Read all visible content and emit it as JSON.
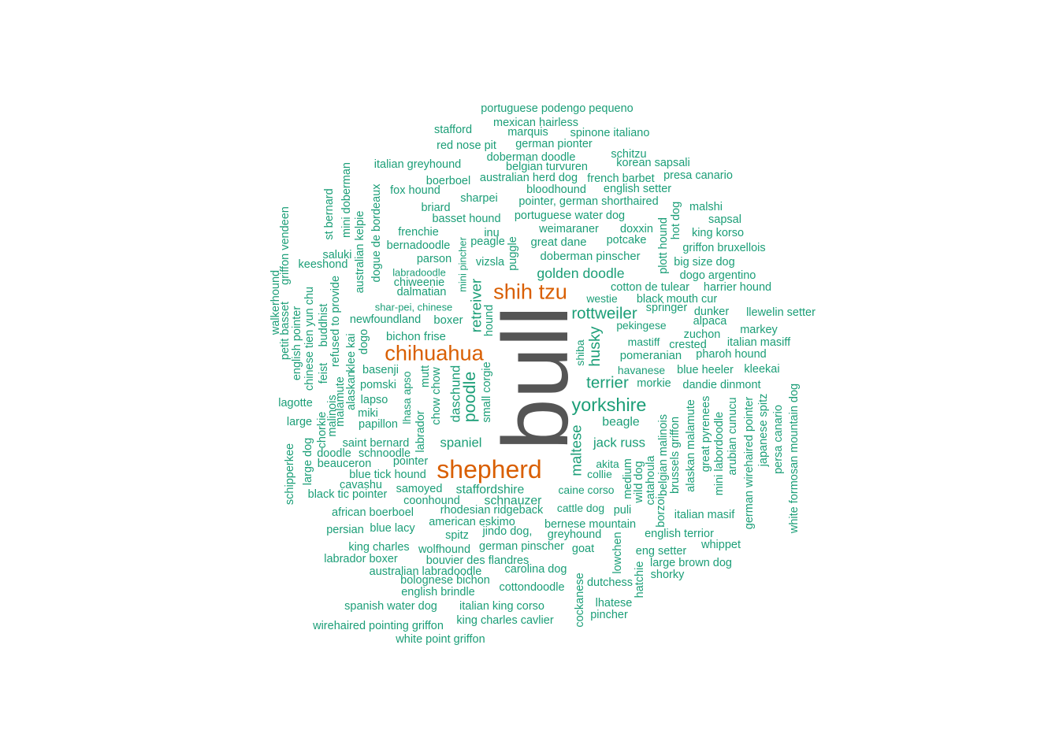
{
  "chart_data": {
    "type": "wordcloud",
    "title": "",
    "colors": {
      "large": "#555555",
      "medium": "#d95f02",
      "small": "#1b9e77"
    },
    "words": [
      {
        "text": "bull",
        "weight": 100
      },
      {
        "text": "shepherd",
        "weight": 40
      },
      {
        "text": "chihuahua",
        "weight": 34
      },
      {
        "text": "shih tzu",
        "weight": 34
      },
      {
        "text": "yorkshire",
        "weight": 24
      },
      {
        "text": "poodle",
        "weight": 22
      },
      {
        "text": "rottweiler",
        "weight": 21
      },
      {
        "text": "terrier",
        "weight": 21
      },
      {
        "text": "husky",
        "weight": 20
      },
      {
        "text": "maltese",
        "weight": 19
      },
      {
        "text": "retreiver",
        "weight": 19
      },
      {
        "text": "golden doodle",
        "weight": 18
      },
      {
        "text": "spaniel",
        "weight": 17
      },
      {
        "text": "jack russ",
        "weight": 17
      },
      {
        "text": "daschund",
        "weight": 17
      },
      {
        "text": "beagle",
        "weight": 16
      },
      {
        "text": "staffordshire",
        "weight": 16
      },
      {
        "text": "schnauzer",
        "weight": 16
      },
      {
        "text": "doberman pinscher",
        "weight": 15
      },
      {
        "text": "chow chow",
        "weight": 15
      },
      {
        "text": "pomeranian",
        "weight": 15
      },
      {
        "text": "bichon frise",
        "weight": 15
      },
      {
        "text": "boxer",
        "weight": 15
      },
      {
        "text": "great dane",
        "weight": 15
      },
      {
        "text": "havanese",
        "weight": 14
      },
      {
        "text": "mastiff",
        "weight": 14
      },
      {
        "text": "shiba",
        "weight": 14
      },
      {
        "text": "caine corso",
        "weight": 14
      },
      {
        "text": "pekingese",
        "weight": 14
      },
      {
        "text": "cattle dog",
        "weight": 14
      },
      {
        "text": "westie",
        "weight": 14
      },
      {
        "text": "lhasa apso",
        "weight": 14
      },
      {
        "text": "akita",
        "weight": 14
      },
      {
        "text": "collie",
        "weight": 14
      },
      {
        "text": "mini pincher",
        "weight": 13
      },
      {
        "text": "labradoodle",
        "weight": 13
      },
      {
        "text": "shar-pei, chinese",
        "weight": 13
      },
      {
        "text": "portuguese podengo pequeno",
        "weight": 12
      },
      {
        "text": "mexican hairless",
        "weight": 12
      },
      {
        "text": "stafford",
        "weight": 12
      },
      {
        "text": "marquis",
        "weight": 12
      },
      {
        "text": "spinone italiano",
        "weight": 12
      },
      {
        "text": "red nose pit",
        "weight": 12
      },
      {
        "text": "german pionter",
        "weight": 12
      },
      {
        "text": "schitzu",
        "weight": 12
      },
      {
        "text": "doberman doodle",
        "weight": 12
      },
      {
        "text": "korean sapsali",
        "weight": 12
      },
      {
        "text": "italian greyhound",
        "weight": 12
      },
      {
        "text": "belgian turvuren",
        "weight": 12
      },
      {
        "text": "presa canario",
        "weight": 12
      },
      {
        "text": "boerboel",
        "weight": 12
      },
      {
        "text": "australian herd dog",
        "weight": 12
      },
      {
        "text": "french barbet",
        "weight": 12
      },
      {
        "text": "fox hound",
        "weight": 12
      },
      {
        "text": "bloodhound",
        "weight": 12
      },
      {
        "text": "english setter",
        "weight": 12
      },
      {
        "text": "sharpei",
        "weight": 12
      },
      {
        "text": "pointer, german shorthaired",
        "weight": 12
      },
      {
        "text": "briard",
        "weight": 12
      },
      {
        "text": "malshi",
        "weight": 12
      },
      {
        "text": "basset hound",
        "weight": 12
      },
      {
        "text": "portuguese water dog",
        "weight": 12
      },
      {
        "text": "sapsal",
        "weight": 12
      },
      {
        "text": "weimaraner",
        "weight": 12
      },
      {
        "text": "doxxin",
        "weight": 12
      },
      {
        "text": "frenchie",
        "weight": 12
      },
      {
        "text": "inu",
        "weight": 12
      },
      {
        "text": "king korso",
        "weight": 12
      },
      {
        "text": "bernadoodle",
        "weight": 12
      },
      {
        "text": "peagle",
        "weight": 12
      },
      {
        "text": "potcake",
        "weight": 12
      },
      {
        "text": "griffon bruxellois",
        "weight": 12
      },
      {
        "text": "parson",
        "weight": 12
      },
      {
        "text": "vizsla",
        "weight": 12
      },
      {
        "text": "big size dog",
        "weight": 12
      },
      {
        "text": "keeshond",
        "weight": 12
      },
      {
        "text": "saluki",
        "weight": 12
      },
      {
        "text": "dogo argentino",
        "weight": 12
      },
      {
        "text": "chiweenie",
        "weight": 12
      },
      {
        "text": "cotton de tulear",
        "weight": 12
      },
      {
        "text": "harrier hound",
        "weight": 12
      },
      {
        "text": "dalmatian",
        "weight": 12
      },
      {
        "text": "black mouth cur",
        "weight": 12
      },
      {
        "text": "springer",
        "weight": 12
      },
      {
        "text": "dunker",
        "weight": 12
      },
      {
        "text": "llewelin setter",
        "weight": 12
      },
      {
        "text": "newfoundland",
        "weight": 12
      },
      {
        "text": "alpaca",
        "weight": 12
      },
      {
        "text": "markey",
        "weight": 12
      },
      {
        "text": "zuchon",
        "weight": 12
      },
      {
        "text": "crested",
        "weight": 12
      },
      {
        "text": "italian masiff",
        "weight": 12
      },
      {
        "text": "pharoh hound",
        "weight": 12
      },
      {
        "text": "basenji",
        "weight": 12
      },
      {
        "text": "blue heeler",
        "weight": 12
      },
      {
        "text": "kleekai",
        "weight": 12
      },
      {
        "text": "pomski",
        "weight": 12
      },
      {
        "text": "morkie",
        "weight": 12
      },
      {
        "text": "dandie dinmont",
        "weight": 12
      },
      {
        "text": "lagotte",
        "weight": 12
      },
      {
        "text": "lapso",
        "weight": 12
      },
      {
        "text": "miki",
        "weight": 12
      },
      {
        "text": "large",
        "weight": 12
      },
      {
        "text": "papillon",
        "weight": 12
      },
      {
        "text": "saint bernard",
        "weight": 12
      },
      {
        "text": "doodle",
        "weight": 12
      },
      {
        "text": "schnoodle",
        "weight": 12
      },
      {
        "text": "beauceron",
        "weight": 12
      },
      {
        "text": "pointer",
        "weight": 12
      },
      {
        "text": "blue tick hound",
        "weight": 12
      },
      {
        "text": "cavashu",
        "weight": 12
      },
      {
        "text": "samoyed",
        "weight": 12
      },
      {
        "text": "black tic pointer",
        "weight": 12
      },
      {
        "text": "coonhound",
        "weight": 12
      },
      {
        "text": "african boerboel",
        "weight": 12
      },
      {
        "text": "rhodesian ridgeback",
        "weight": 12
      },
      {
        "text": "puli",
        "weight": 12
      },
      {
        "text": "italian masif",
        "weight": 12
      },
      {
        "text": "american eskimo",
        "weight": 12
      },
      {
        "text": "bernese mountain",
        "weight": 12
      },
      {
        "text": "persian",
        "weight": 12
      },
      {
        "text": "blue lacy",
        "weight": 12
      },
      {
        "text": "jindo dog,",
        "weight": 12
      },
      {
        "text": "spitz",
        "weight": 12
      },
      {
        "text": "greyhound",
        "weight": 12
      },
      {
        "text": "english terrior",
        "weight": 12
      },
      {
        "text": "king charles",
        "weight": 12
      },
      {
        "text": "german pinscher",
        "weight": 12
      },
      {
        "text": "wolfhound",
        "weight": 12
      },
      {
        "text": "goat",
        "weight": 12
      },
      {
        "text": "whippet",
        "weight": 12
      },
      {
        "text": "eng setter",
        "weight": 12
      },
      {
        "text": "labrador boxer",
        "weight": 12
      },
      {
        "text": "bouvier des flandres",
        "weight": 12
      },
      {
        "text": "large brown dog",
        "weight": 12
      },
      {
        "text": "australian labradoodle",
        "weight": 12
      },
      {
        "text": "carolina dog",
        "weight": 12
      },
      {
        "text": "shorky",
        "weight": 12
      },
      {
        "text": "bolognese bichon",
        "weight": 12
      },
      {
        "text": "dutchess",
        "weight": 12
      },
      {
        "text": "cottondoodle",
        "weight": 12
      },
      {
        "text": "english brindle",
        "weight": 12
      },
      {
        "text": "lhatese",
        "weight": 12
      },
      {
        "text": "spanish water dog",
        "weight": 12
      },
      {
        "text": "italian king corso",
        "weight": 12
      },
      {
        "text": "pincher",
        "weight": 12
      },
      {
        "text": "king charles cavlier",
        "weight": 12
      },
      {
        "text": "wirehaired pointing griffon",
        "weight": 12
      },
      {
        "text": "white point griffon",
        "weight": 12
      },
      {
        "text": "st bernard",
        "weight": 12
      },
      {
        "text": "mini doberman",
        "weight": 12
      },
      {
        "text": "griffon vendeen",
        "weight": 12
      },
      {
        "text": "australian kelpie",
        "weight": 12
      },
      {
        "text": "dogue de bordeaux",
        "weight": 12
      },
      {
        "text": "walkerhound",
        "weight": 12
      },
      {
        "text": "petit basset",
        "weight": 12
      },
      {
        "text": "english pointer",
        "weight": 12
      },
      {
        "text": "chinese tien yun chu",
        "weight": 12
      },
      {
        "text": "buddhist",
        "weight": 12
      },
      {
        "text": "refused to provide",
        "weight": 12
      },
      {
        "text": "feist",
        "weight": 12
      },
      {
        "text": "klee kai",
        "weight": 12
      },
      {
        "text": "dogo",
        "weight": 12
      },
      {
        "text": "alaskan",
        "weight": 12
      },
      {
        "text": "malamute",
        "weight": 12
      },
      {
        "text": "malinois",
        "weight": 12
      },
      {
        "text": "chorkie",
        "weight": 12
      },
      {
        "text": "large dog",
        "weight": 12
      },
      {
        "text": "schipperkee",
        "weight": 12
      },
      {
        "text": "mutt",
        "weight": 12
      },
      {
        "text": "labrador",
        "weight": 12
      },
      {
        "text": "small corgie",
        "weight": 12
      },
      {
        "text": "hound",
        "weight": 12
      },
      {
        "text": "puggle",
        "weight": 12
      },
      {
        "text": "plott hound",
        "weight": 12
      },
      {
        "text": "hot dog",
        "weight": 12
      },
      {
        "text": "medium",
        "weight": 12
      },
      {
        "text": "wild dog",
        "weight": 12
      },
      {
        "text": "catahoula",
        "weight": 12
      },
      {
        "text": "borzoi",
        "weight": 12
      },
      {
        "text": "belgian malinois",
        "weight": 12
      },
      {
        "text": "brussels griffon",
        "weight": 12
      },
      {
        "text": "alaskan malamute",
        "weight": 12
      },
      {
        "text": "great pyrenees",
        "weight": 12
      },
      {
        "text": "mini labordoodle",
        "weight": 12
      },
      {
        "text": "arubian cunucu",
        "weight": 12
      },
      {
        "text": "german wirehaired pointer",
        "weight": 12
      },
      {
        "text": "japanese spitz",
        "weight": 12
      },
      {
        "text": "persa canario",
        "weight": 12
      },
      {
        "text": "white formosan mountain dog",
        "weight": 12
      },
      {
        "text": "lowchen",
        "weight": 12
      },
      {
        "text": "hatchie",
        "weight": 12
      },
      {
        "text": "cockanese",
        "weight": 12
      }
    ]
  }
}
